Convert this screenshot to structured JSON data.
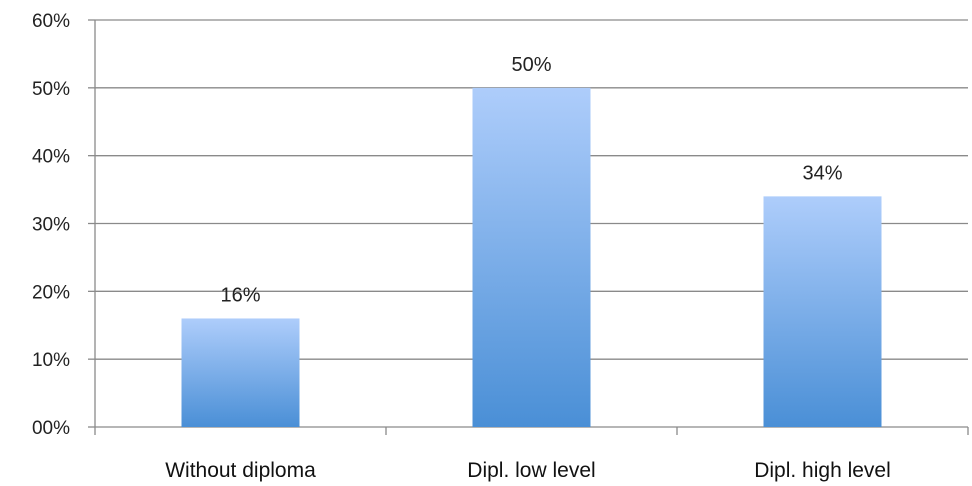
{
  "chart_data": {
    "type": "bar",
    "categories": [
      "Without diploma",
      "Dipl. low level",
      "Dipl. high level"
    ],
    "values": [
      16,
      50,
      34
    ],
    "data_labels": [
      "16%",
      "50%",
      "34%"
    ],
    "ylim": [
      0,
      60
    ],
    "y_ticks": [
      0,
      10,
      20,
      30,
      40,
      50,
      60
    ],
    "y_tick_labels": [
      "00%",
      "10%",
      "20%",
      "30%",
      "40%",
      "50%",
      "60%"
    ],
    "title": "",
    "xlabel": "",
    "ylabel": "",
    "grid": true,
    "legend": "none",
    "colors": {
      "bar_top": "#aecdfb",
      "bar_bottom": "#4a8fd6",
      "grid": "#8a8a8a",
      "axis": "#8a8a8a"
    }
  }
}
